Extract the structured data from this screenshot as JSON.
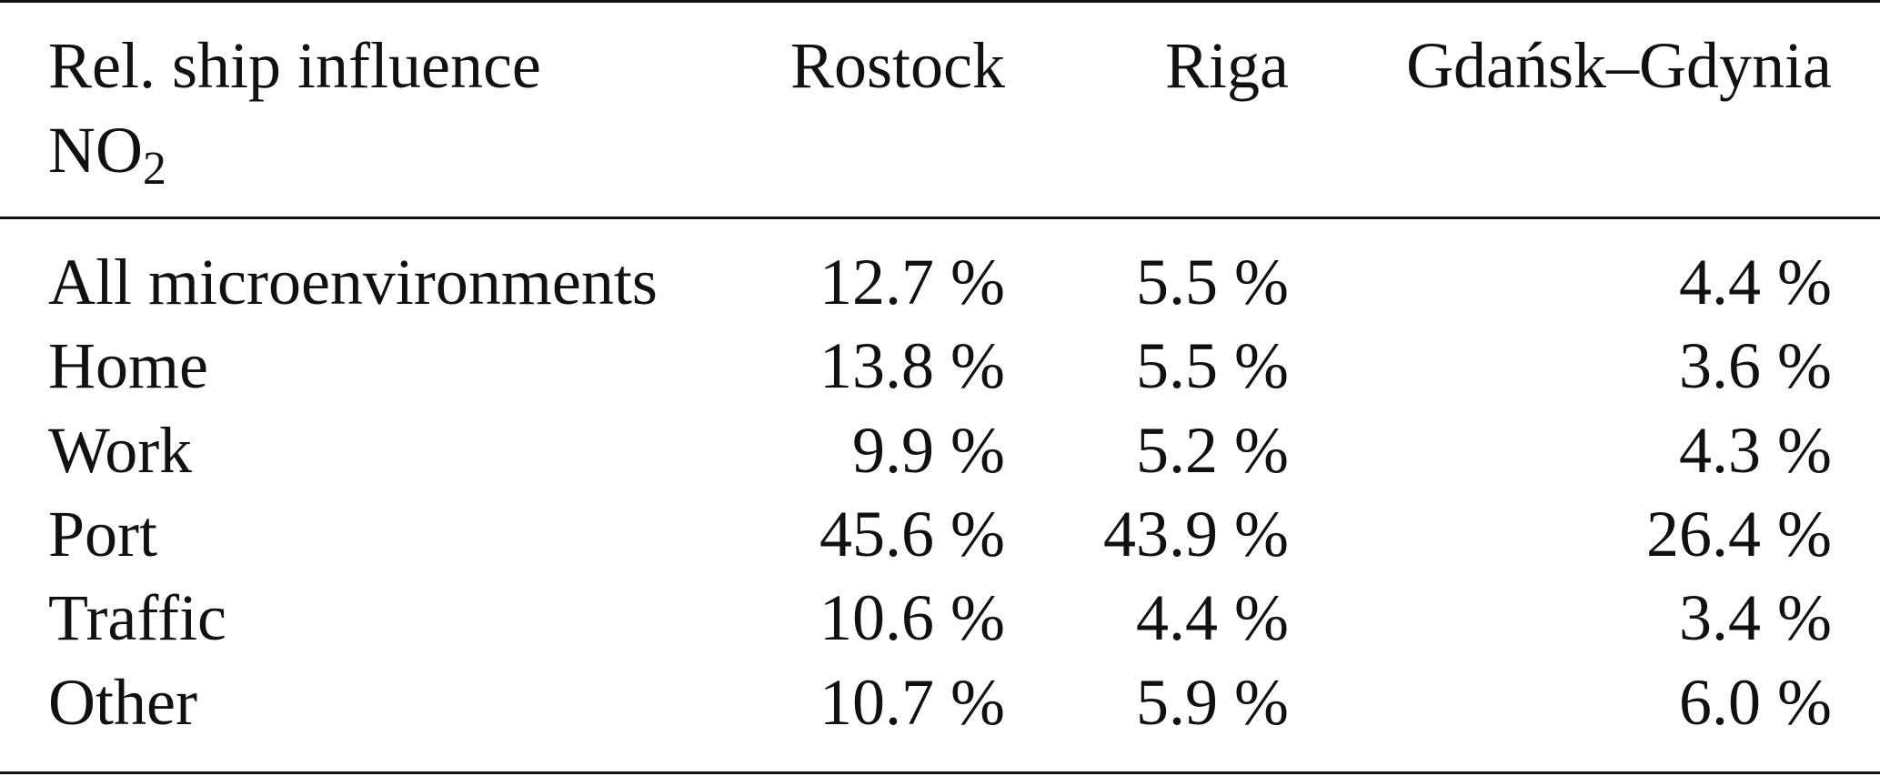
{
  "table": {
    "header": {
      "label": "Rel. ship influence",
      "label_formula": {
        "base": "NO",
        "subscript": "2"
      },
      "columns": [
        "Rostock",
        "Riga",
        "Gdańsk–Gdynia"
      ]
    },
    "rows": [
      [
        "All microenvironments",
        "12.7 %",
        "5.5 %",
        "4.4 %"
      ],
      [
        "Home",
        "13.8 %",
        "5.5 %",
        "3.6 %"
      ],
      [
        "Work",
        "9.9 %",
        "5.2 %",
        "4.3 %"
      ],
      [
        "Port",
        "45.6 %",
        "43.9 %",
        "26.4 %"
      ],
      [
        "Traffic",
        "10.6 %",
        "4.4 %",
        "3.4 %"
      ],
      [
        "Other",
        "10.7 %",
        "5.9 %",
        "6.0 %"
      ]
    ]
  }
}
